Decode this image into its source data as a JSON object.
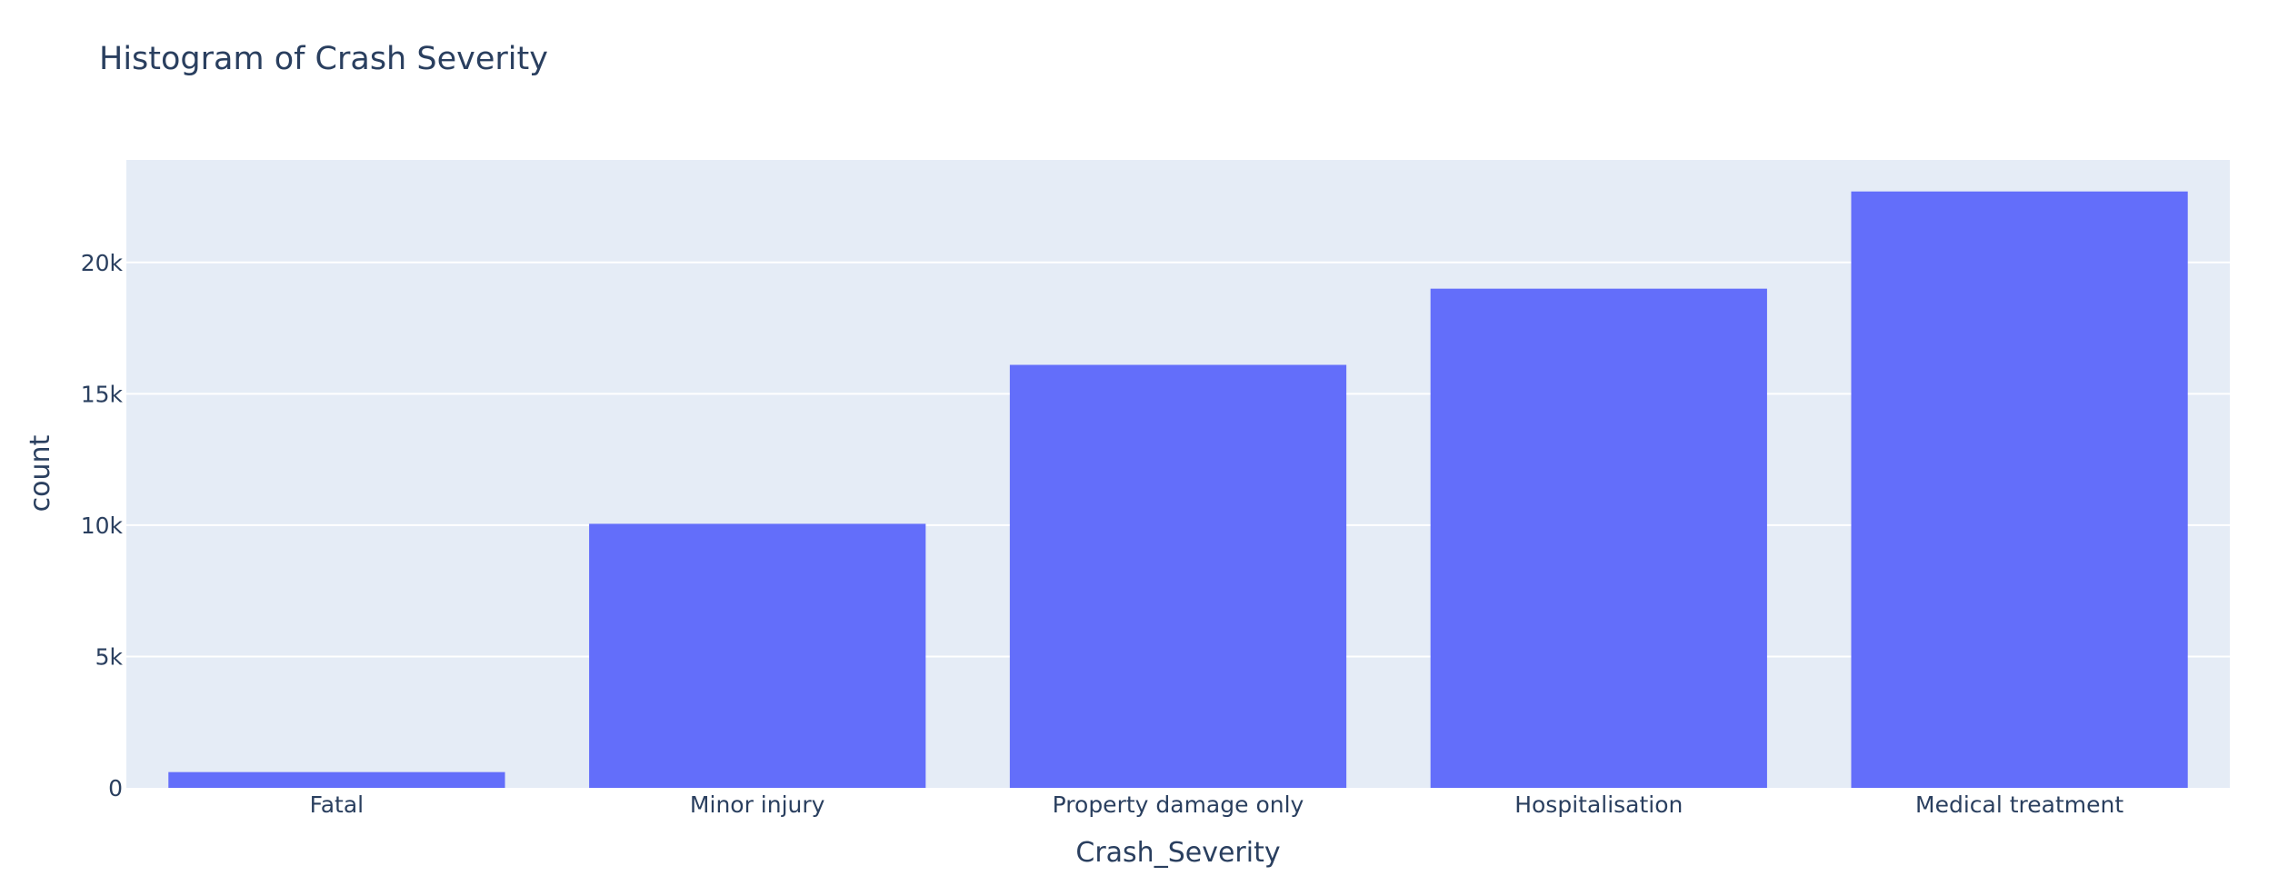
{
  "chart_data": {
    "type": "bar",
    "title": "Histogram of Crash Severity",
    "xlabel": "Crash_Severity",
    "ylabel": "count",
    "categories": [
      "Fatal",
      "Minor injury",
      "Property damage only",
      "Hospitalisation",
      "Medical treatment"
    ],
    "values": [
      600,
      10050,
      16100,
      19000,
      22700
    ],
    "ylim": [
      0,
      23900
    ],
    "yticks": [
      0,
      5000,
      10000,
      15000,
      20000
    ],
    "ytick_labels": [
      "0",
      "5k",
      "10k",
      "15k",
      "20k"
    ],
    "grid": true,
    "legend": false,
    "colors": {
      "bar": "#636efa",
      "plot_bg": "#e5ecf6",
      "grid": "#ffffff",
      "text": "#2a3f5f"
    }
  }
}
